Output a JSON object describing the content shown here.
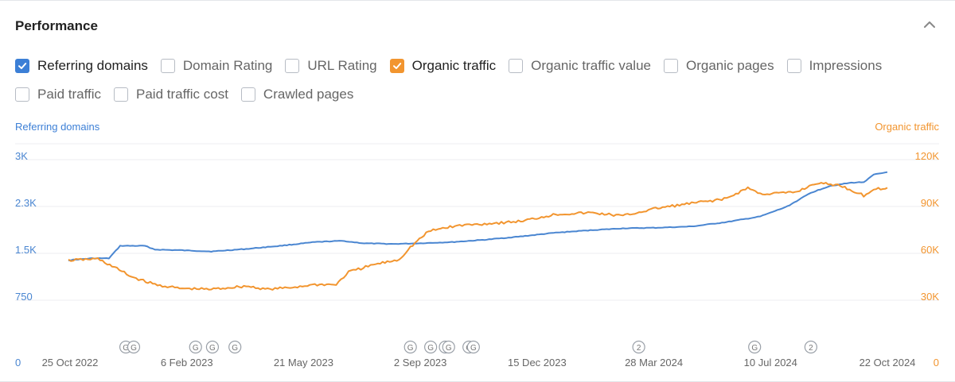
{
  "header": {
    "title": "Performance"
  },
  "icons": {
    "collapse": "chevron-up-icon",
    "check": "check-icon",
    "google_update": "google-update-icon"
  },
  "colors": {
    "referring_domains": "#4a86d1",
    "organic_traffic": "#f2952f",
    "grid": "#eceef1",
    "tick_left": "#4a86d1",
    "tick_right": "#f2952f",
    "date": "#666666"
  },
  "checkboxes": {
    "row1": [
      {
        "label": "Referring domains",
        "checked": true,
        "color": "#3c7fd6"
      },
      {
        "label": "Domain Rating",
        "checked": false
      },
      {
        "label": "URL Rating",
        "checked": false
      },
      {
        "label": "Organic traffic",
        "checked": true,
        "color": "#f2952f"
      },
      {
        "label": "Organic traffic value",
        "checked": false
      },
      {
        "label": "Organic pages",
        "checked": false
      },
      {
        "label": "Impressions",
        "checked": false
      }
    ],
    "row2": [
      {
        "label": "Paid traffic",
        "checked": false
      },
      {
        "label": "Paid traffic cost",
        "checked": false
      },
      {
        "label": "Crawled pages",
        "checked": false
      }
    ]
  },
  "chart_data": {
    "type": "line",
    "y_left_title": "Referring domains",
    "y_right_title": "Organic traffic",
    "y_left_ticks": [
      "0",
      "750",
      "1.5K",
      "2.3K",
      "3K"
    ],
    "y_right_ticks": [
      "0",
      "30K",
      "60K",
      "90K",
      "120K"
    ],
    "ylim_left": [
      0,
      3000
    ],
    "ylim_right": [
      0,
      120000
    ],
    "x_tick_labels": [
      "25 Oct 2022",
      "6 Feb 2023",
      "21 May 2023",
      "2 Sep 2023",
      "15 Dec 2023",
      "28 Mar 2024",
      "10 Jul 2024",
      "22 Oct 2024"
    ],
    "x_range": [
      "2022-10-25",
      "2024-10-22"
    ],
    "grid": true,
    "legend": "none",
    "series": [
      {
        "name": "Referring domains",
        "axis": "left",
        "x": [
          "2022-10-25",
          "2022-11-15",
          "2022-11-30",
          "2022-12-10",
          "2023-01-01",
          "2023-01-10",
          "2023-02-01",
          "2023-03-01",
          "2023-04-01",
          "2023-05-01",
          "2023-06-01",
          "2023-06-25",
          "2023-07-15",
          "2023-08-10",
          "2023-09-01",
          "2023-10-01",
          "2023-11-01",
          "2023-12-01",
          "2024-01-01",
          "2024-02-01",
          "2024-03-01",
          "2024-04-01",
          "2024-05-01",
          "2024-06-01",
          "2024-07-01",
          "2024-07-25",
          "2024-08-15",
          "2024-09-01",
          "2024-09-20",
          "2024-10-01",
          "2024-10-10",
          "2024-10-22"
        ],
        "y": [
          1390,
          1420,
          1420,
          1620,
          1620,
          1560,
          1550,
          1530,
          1570,
          1620,
          1680,
          1700,
          1660,
          1650,
          1660,
          1680,
          1720,
          1770,
          1830,
          1870,
          1900,
          1910,
          1930,
          2000,
          2090,
          2250,
          2470,
          2580,
          2630,
          2640,
          2760,
          2800
        ]
      },
      {
        "name": "Organic traffic",
        "axis": "right",
        "x": [
          "2022-10-25",
          "2022-11-20",
          "2022-12-05",
          "2022-12-20",
          "2023-01-10",
          "2023-02-01",
          "2023-03-01",
          "2023-04-01",
          "2023-04-20",
          "2023-05-10",
          "2023-06-01",
          "2023-06-20",
          "2023-07-01",
          "2023-07-25",
          "2023-08-15",
          "2023-08-25",
          "2023-09-10",
          "2023-09-25",
          "2023-10-10",
          "2023-11-01",
          "2023-12-01",
          "2024-01-01",
          "2024-02-01",
          "2024-03-01",
          "2024-04-01",
          "2024-05-01",
          "2024-06-01",
          "2024-06-20",
          "2024-07-01",
          "2024-08-01",
          "2024-08-20",
          "2024-09-10",
          "2024-10-01",
          "2024-10-10",
          "2024-10-22"
        ],
        "y": [
          55500,
          56500,
          51000,
          45000,
          40000,
          37500,
          37000,
          39000,
          37000,
          38000,
          40000,
          40000,
          48000,
          53000,
          56000,
          64000,
          74000,
          76500,
          78000,
          79000,
          80500,
          85000,
          86000,
          84000,
          89000,
          92000,
          95000,
          102000,
          98000,
          99000,
          105000,
          103500,
          97000,
          101000,
          102000
        ]
      }
    ],
    "annotations": [
      {
        "date": "2022-12-15",
        "label": "G"
      },
      {
        "date": "2022-12-22",
        "label": "G"
      },
      {
        "date": "2023-02-15",
        "label": "G"
      },
      {
        "date": "2023-03-02",
        "label": "G"
      },
      {
        "date": "2023-03-22",
        "label": "G"
      },
      {
        "date": "2023-08-25",
        "label": "G"
      },
      {
        "date": "2023-09-12",
        "label": "G"
      },
      {
        "date": "2023-09-25",
        "label": "G"
      },
      {
        "date": "2023-09-28",
        "label": "G"
      },
      {
        "date": "2023-10-16",
        "label": "G"
      },
      {
        "date": "2023-10-20",
        "label": "G"
      },
      {
        "date": "2024-03-15",
        "label": "2"
      },
      {
        "date": "2024-06-26",
        "label": "G"
      },
      {
        "date": "2024-08-15",
        "label": "2"
      }
    ]
  }
}
